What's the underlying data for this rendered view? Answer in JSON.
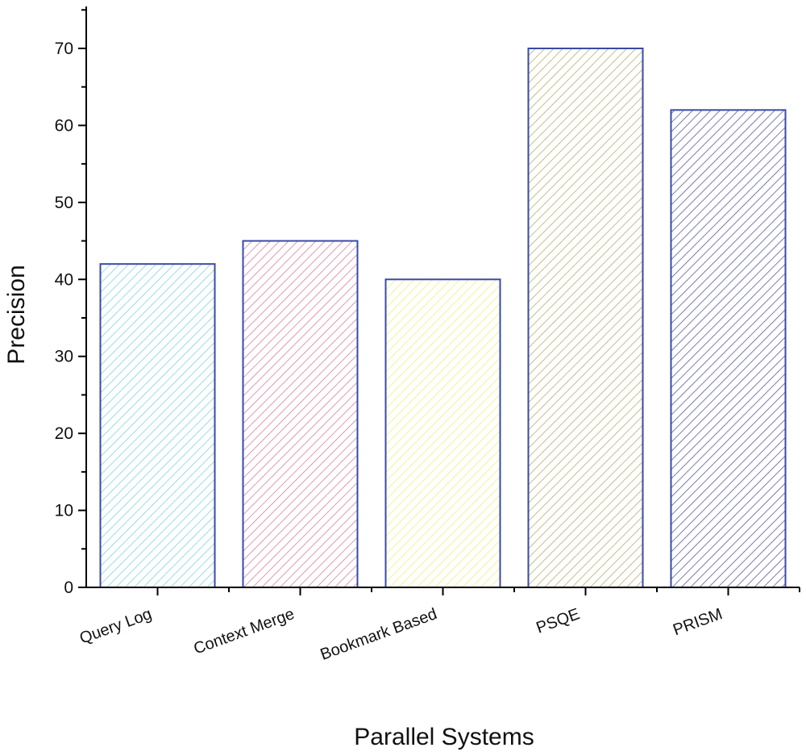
{
  "chart_data": {
    "type": "bar",
    "title": "",
    "xlabel": "Parallel Systems",
    "ylabel": "Precision",
    "categories": [
      "Query Log",
      "Context Merge",
      "Bookmark Based",
      "PSQE",
      "PRISM"
    ],
    "values": [
      42,
      45,
      40,
      70,
      62
    ],
    "ylim": [
      0,
      75
    ],
    "yticks": [
      0,
      10,
      20,
      30,
      40,
      50,
      60,
      70
    ],
    "grid": false,
    "legend": "none",
    "fill_pattern": "diagonal-hatch",
    "bar_colors": [
      "#7fd6d6",
      "#d97f9d",
      "#f0f07a",
      "#b5b06a",
      "#5b5b99"
    ],
    "edge_color": "#3a4aa8"
  }
}
